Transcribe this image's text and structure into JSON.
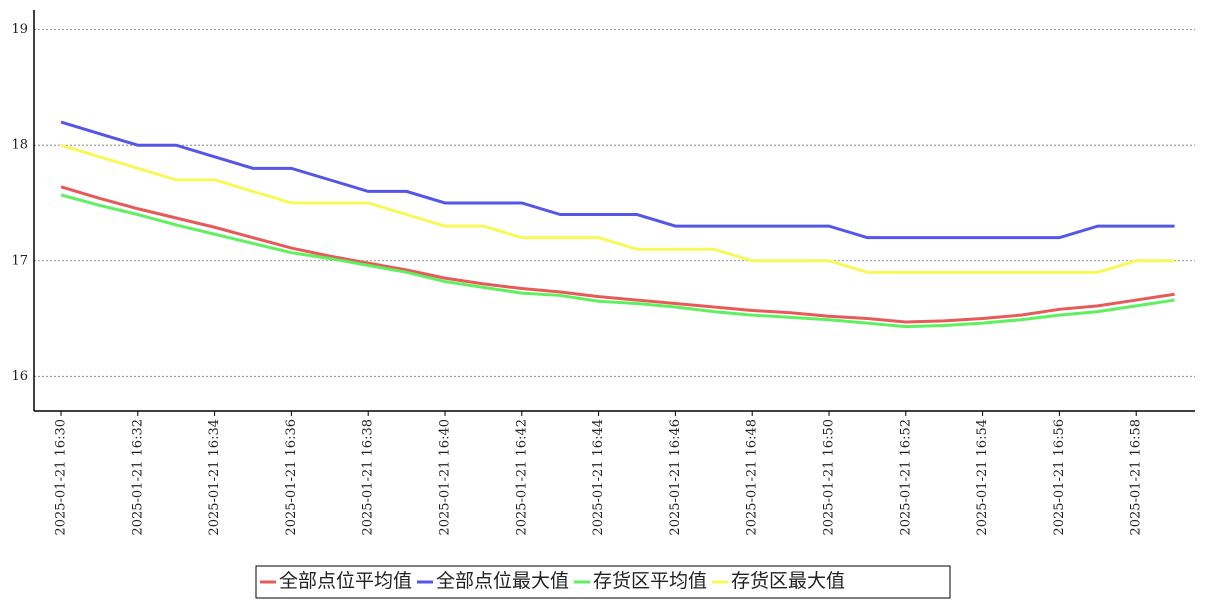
{
  "chart_data": {
    "type": "line",
    "categories": [
      "2025-01-21  16:30",
      null,
      "2025-01-21  16:32",
      null,
      "2025-01-21  16:34",
      null,
      "2025-01-21  16:36",
      null,
      "2025-01-21  16:38",
      null,
      "2025-01-21  16:40",
      null,
      "2025-01-21  16:42",
      null,
      "2025-01-21  16:44",
      null,
      "2025-01-21  16:46",
      null,
      "2025-01-21  16:48",
      null,
      "2025-01-21  16:50",
      null,
      "2025-01-21  16:52",
      null,
      "2025-01-21  16:54",
      null,
      "2025-01-21  16:56",
      null,
      "2025-01-21  16:58",
      null
    ],
    "series": [
      {
        "name": "全部点位平均值",
        "color": "#e85a5a",
        "values": [
          17.64,
          17.54,
          17.45,
          17.37,
          17.29,
          17.2,
          17.11,
          17.04,
          16.98,
          16.92,
          16.85,
          16.8,
          16.76,
          16.73,
          16.69,
          16.66,
          16.63,
          16.6,
          16.57,
          16.55,
          16.52,
          16.5,
          16.47,
          16.48,
          16.5,
          16.53,
          16.58,
          16.61,
          16.66,
          16.71
        ]
      },
      {
        "name": "全部点位最大值",
        "color": "#5555e8",
        "values": [
          18.2,
          18.1,
          18.0,
          18.0,
          17.9,
          17.8,
          17.8,
          17.7,
          17.6,
          17.6,
          17.5,
          17.5,
          17.5,
          17.4,
          17.4,
          17.4,
          17.3,
          17.3,
          17.3,
          17.3,
          17.3,
          17.2,
          17.2,
          17.2,
          17.2,
          17.2,
          17.2,
          17.3,
          17.3,
          17.3
        ]
      },
      {
        "name": "存货区平均值",
        "color": "#5ef05e",
        "values": [
          17.57,
          17.48,
          17.4,
          17.31,
          17.23,
          17.15,
          17.07,
          17.02,
          16.96,
          16.9,
          16.82,
          16.77,
          16.72,
          16.7,
          16.65,
          16.63,
          16.6,
          16.56,
          16.53,
          16.51,
          16.49,
          16.46,
          16.43,
          16.44,
          16.46,
          16.49,
          16.53,
          16.56,
          16.61,
          16.66
        ]
      },
      {
        "name": "存货区最大值",
        "color": "#f8f858",
        "values": [
          18.0,
          17.9,
          17.8,
          17.7,
          17.7,
          17.6,
          17.5,
          17.5,
          17.5,
          17.4,
          17.3,
          17.3,
          17.2,
          17.2,
          17.2,
          17.1,
          17.1,
          17.1,
          17.0,
          17.0,
          17.0,
          16.9,
          16.9,
          16.9,
          16.9,
          16.9,
          16.9,
          16.9,
          17.0,
          17.0
        ]
      }
    ],
    "ylim": [
      15.7,
      19.17
    ],
    "yticks": [
      16,
      17,
      18,
      19
    ],
    "grid": true
  }
}
